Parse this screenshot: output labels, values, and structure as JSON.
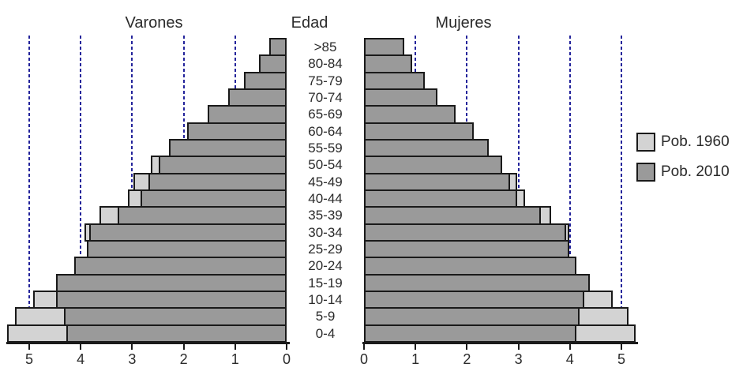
{
  "chart_data": {
    "type": "bar",
    "subtype": "population-pyramid",
    "left_title": "Varones",
    "center_title": "Edad",
    "right_title": "Mujeres",
    "legend": [
      {
        "label": "Pob. 1960",
        "color": "#d3d3d3"
      },
      {
        "label": "Pob. 2010",
        "color": "#9a9a9a"
      }
    ],
    "colors": {
      "pob_1960_fill": "#d3d3d3",
      "pob_2010_fill": "#9a9a9a",
      "bar_outline": "#1a1a1a",
      "gridline": "#24249b",
      "text": "#2b2b2b"
    },
    "age_groups": [
      ">85",
      "80-84",
      "75-79",
      "70-74",
      "65-69",
      "60-64",
      "55-59",
      "50-54",
      "45-49",
      "40-44",
      "35-39",
      "30-34",
      "25-29",
      "20-24",
      "15-19",
      "10-14",
      "5-9",
      "0-4"
    ],
    "x_axis": {
      "ticks": [
        0,
        1,
        2,
        3,
        4,
        5
      ],
      "gridlines": [
        1,
        2,
        3,
        4,
        5
      ],
      "left_tick_order": "5 to 0",
      "right_tick_order": "0 to 5",
      "xlim": [
        0,
        5.5
      ],
      "grid_style": "dashed"
    },
    "varones": {
      "pob_2010": [
        0.3,
        0.5,
        0.8,
        1.1,
        1.5,
        1.9,
        2.25,
        2.45,
        2.65,
        2.8,
        3.25,
        3.8,
        3.85,
        4.1,
        4.45,
        4.45,
        4.3,
        4.25
      ],
      "pob_1960": [
        null,
        null,
        null,
        null,
        null,
        null,
        null,
        2.6,
        2.95,
        3.05,
        3.6,
        3.9,
        null,
        null,
        null,
        4.9,
        5.25,
        5.4
      ]
    },
    "mujeres": {
      "pob_2010": [
        0.75,
        0.9,
        1.15,
        1.4,
        1.75,
        2.1,
        2.4,
        2.65,
        2.8,
        2.95,
        3.4,
        3.9,
        3.95,
        4.1,
        4.35,
        4.25,
        4.15,
        4.1
      ],
      "pob_1960": [
        null,
        null,
        null,
        null,
        null,
        null,
        null,
        null,
        2.95,
        3.1,
        3.6,
        3.95,
        null,
        null,
        null,
        4.8,
        5.1,
        5.25
      ]
    }
  }
}
